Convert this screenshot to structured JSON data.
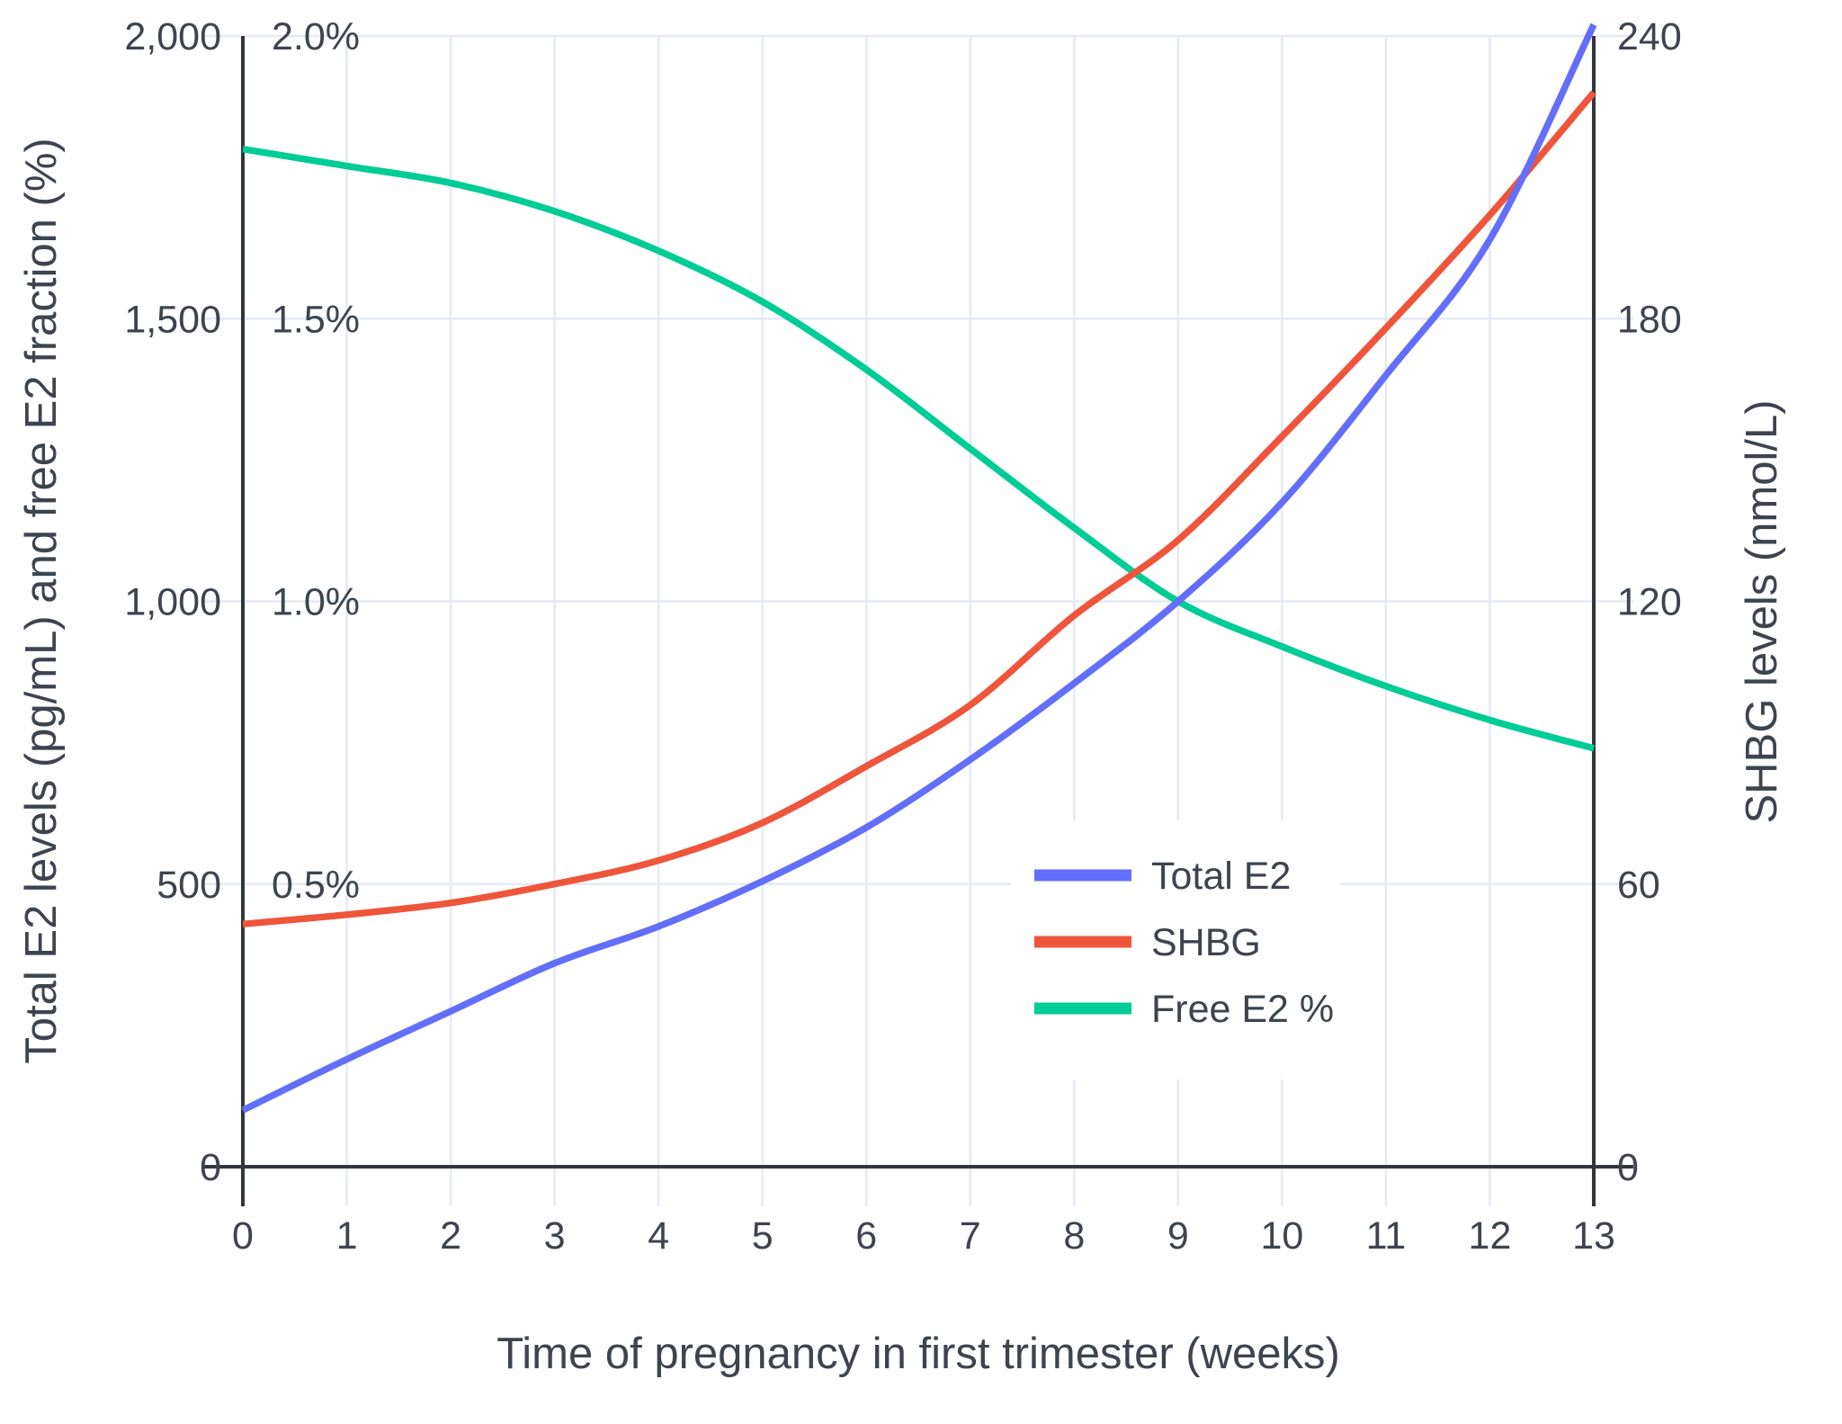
{
  "chart_data": {
    "type": "line",
    "title": "",
    "xlabel": "Time of pregnancy in first trimester (weeks)",
    "ylabel_left": "Total E2 levels (pg/mL) and free E2 fraction (%)",
    "ylabel_right": "SHBG levels (nmol/L)",
    "x": [
      0,
      1,
      2,
      3,
      4,
      5,
      6,
      7,
      8,
      9,
      10,
      11,
      12,
      13
    ],
    "x_range": [
      0,
      13
    ],
    "left_axis": {
      "range": [
        0,
        2000
      ],
      "ticks": [
        {
          "value": 0,
          "label": "0"
        },
        {
          "value": 500,
          "label": "500"
        },
        {
          "value": 1000,
          "label": "1,000"
        },
        {
          "value": 1500,
          "label": "1,500"
        },
        {
          "value": 2000,
          "label": "2,000"
        }
      ],
      "percent_ticks": [
        {
          "value": 0.5,
          "label": "0.5%"
        },
        {
          "value": 1.0,
          "label": "1.0%"
        },
        {
          "value": 1.5,
          "label": "1.5%"
        },
        {
          "value": 2.0,
          "label": "2.0%"
        }
      ]
    },
    "right_axis": {
      "range": [
        0,
        240
      ],
      "ticks": [
        {
          "value": 0,
          "label": "0"
        },
        {
          "value": 60,
          "label": "60"
        },
        {
          "value": 120,
          "label": "120"
        },
        {
          "value": 180,
          "label": "180"
        },
        {
          "value": 240,
          "label": "240"
        }
      ]
    },
    "x_ticks": [
      {
        "value": 0,
        "label": "0"
      },
      {
        "value": 1,
        "label": "1"
      },
      {
        "value": 2,
        "label": "2"
      },
      {
        "value": 3,
        "label": "3"
      },
      {
        "value": 4,
        "label": "4"
      },
      {
        "value": 5,
        "label": "5"
      },
      {
        "value": 6,
        "label": "6"
      },
      {
        "value": 7,
        "label": "7"
      },
      {
        "value": 8,
        "label": "8"
      },
      {
        "value": 9,
        "label": "9"
      },
      {
        "value": 10,
        "label": "10"
      },
      {
        "value": 11,
        "label": "11"
      },
      {
        "value": 12,
        "label": "12"
      },
      {
        "value": 13,
        "label": "13"
      }
    ],
    "series": [
      {
        "name": "Free E2 %",
        "axis": "percent",
        "color": "#00CC96",
        "values": [
          1.8,
          1.77,
          1.74,
          1.69,
          1.62,
          1.53,
          1.41,
          1.27,
          1.13,
          1.0,
          0.92,
          0.85,
          0.79,
          0.74
        ]
      },
      {
        "name": "SHBG",
        "axis": "right",
        "color": "#EF553B",
        "values": [
          51.5,
          53.5,
          56,
          60,
          65,
          73,
          85,
          98,
          117,
          133,
          155,
          178,
          202,
          228
        ]
      },
      {
        "name": "Total E2",
        "axis": "left",
        "color": "#636EFA",
        "values": [
          100,
          190,
          275,
          360,
          425,
          505,
          600,
          720,
          855,
          1000,
          1175,
          1400,
          1640,
          2020
        ]
      }
    ],
    "legend": {
      "position": "center-right",
      "items": [
        {
          "label": "Total E2",
          "color": "#636EFA"
        },
        {
          "label": "SHBG",
          "color": "#EF553B"
        },
        {
          "label": "Free E2 %",
          "color": "#00CC96"
        }
      ]
    },
    "grid": true
  },
  "colors": {
    "background": "#ffffff",
    "grid": "#e4eaf5",
    "axis_line": "#31363c",
    "text": "#3d444e",
    "legend_background": "#ffffff"
  }
}
